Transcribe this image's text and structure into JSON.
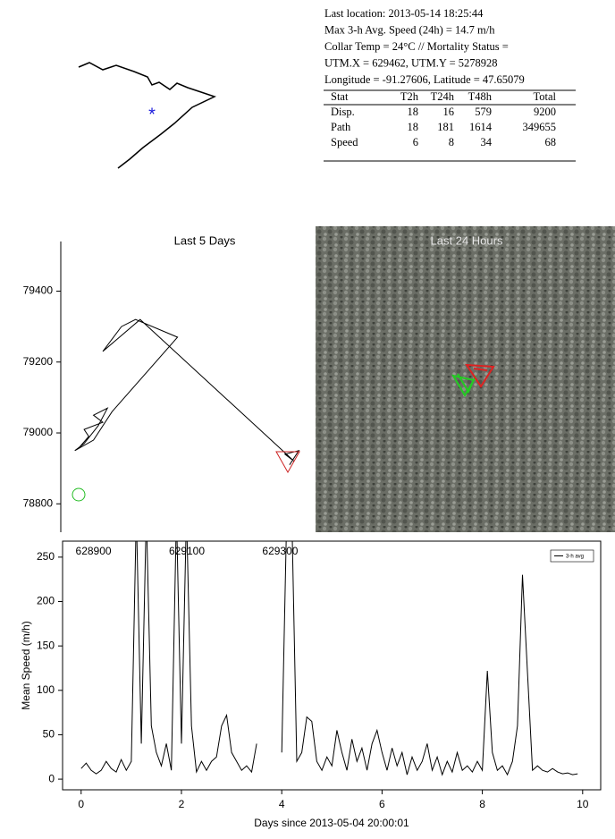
{
  "info": {
    "lines": [
      "Last location: 2013-05-14 18:25:44",
      "Max 3-h Avg. Speed (24h) = 14.7 m/h",
      "Collar Temp = 24°C // Mortality Status =",
      "UTM.X = 629462, UTM.Y = 5278928",
      "Longitude = -91.27606, Latitude = 47.65079"
    ]
  },
  "stats": {
    "header": [
      "Stat",
      "T2h",
      "T24h",
      "T48h",
      "Total"
    ],
    "rows": [
      [
        "Disp.",
        18,
        16,
        579,
        9200
      ],
      [
        "Path",
        18,
        181,
        1614,
        349655
      ],
      [
        "Speed",
        6,
        8,
        34,
        68
      ]
    ]
  },
  "satellite_panel": {
    "title": "Last 24 Hours"
  },
  "chart_data": [
    {
      "type": "line",
      "title": "Last 5 Days",
      "xlim": [
        628830,
        629370
      ],
      "ylim": [
        78720,
        79540
      ],
      "xticks": [
        628900,
        629100,
        629300
      ],
      "yticks": [
        78800,
        79000,
        79200,
        79400
      ],
      "series": [
        {
          "color": "#000000",
          "x": [
            628870,
            628890,
            628880,
            628920,
            628900,
            628930,
            628910,
            628880,
            628860,
            628900,
            628940,
            629080,
            628990,
            628960,
            628920,
            629000,
            629330,
            629310,
            629340,
            629320
          ],
          "values": [
            78960,
            78990,
            79010,
            79030,
            79050,
            79070,
            79020,
            78970,
            78950,
            78980,
            79060,
            79270,
            79320,
            79300,
            79230,
            79320,
            78920,
            78940,
            78950,
            78910
          ]
        }
      ]
    },
    {
      "type": "line",
      "xlabel": "Days since 2013-05-04 20:00:01",
      "ylabel": "Mean Speed (m/h)",
      "xlim": [
        -0.37,
        10.36
      ],
      "ylim": [
        -12,
        268
      ],
      "xticks": [
        0,
        2,
        4,
        6,
        8,
        10
      ],
      "yticks": [
        0,
        50,
        100,
        150,
        200,
        250
      ],
      "x": [
        0,
        0.1,
        0.2,
        0.3,
        0.4,
        0.5,
        0.6,
        0.7,
        0.8,
        0.9,
        1,
        1.1,
        1.2,
        1.3,
        1.4,
        1.5,
        1.6,
        1.7,
        1.8,
        1.9,
        2,
        2.1,
        2.2,
        2.3,
        2.4,
        2.5,
        2.6,
        2.7,
        2.8,
        2.9,
        3,
        3.1,
        3.2,
        3.3,
        3.4,
        3.5,
        3.6,
        3.7,
        3.8,
        3.9,
        4,
        4.1,
        4.2,
        4.3,
        4.4,
        4.5,
        4.6,
        4.7,
        4.8,
        4.9,
        5,
        5.1,
        5.2,
        5.3,
        5.4,
        5.5,
        5.6,
        5.7,
        5.8,
        5.9,
        6,
        6.1,
        6.2,
        6.3,
        6.4,
        6.5,
        6.6,
        6.7,
        6.8,
        6.9,
        7,
        7.1,
        7.2,
        7.3,
        7.4,
        7.5,
        7.6,
        7.7,
        7.8,
        7.9,
        8,
        8.1,
        8.2,
        8.3,
        8.4,
        8.5,
        8.6,
        8.7,
        8.8,
        8.9,
        9,
        9.1,
        9.2,
        9.3,
        9.4,
        9.5,
        9.6,
        9.7,
        9.8,
        9.9
      ],
      "series": [
        {
          "name": "3-h avg",
          "color": "#000000",
          "values": [
            12,
            18,
            10,
            6,
            10,
            20,
            12,
            8,
            22,
            10,
            20,
            300,
            40,
            300,
            60,
            30,
            15,
            40,
            10,
            300,
            40,
            300,
            60,
            8,
            20,
            10,
            20,
            25,
            60,
            72,
            30,
            20,
            10,
            15,
            8,
            40,
            null,
            null,
            null,
            null,
            30,
            300,
            300,
            20,
            30,
            70,
            65,
            20,
            10,
            25,
            15,
            55,
            30,
            10,
            45,
            20,
            35,
            10,
            40,
            55,
            30,
            10,
            35,
            15,
            30,
            5,
            25,
            10,
            20,
            40,
            10,
            25,
            5,
            20,
            8,
            30,
            10,
            15,
            8,
            20,
            10,
            122,
            30,
            10,
            15,
            5,
            20,
            60,
            230,
            120,
            10,
            15,
            10,
            8,
            12,
            8,
            6,
            7,
            5,
            6
          ]
        }
      ]
    }
  ]
}
